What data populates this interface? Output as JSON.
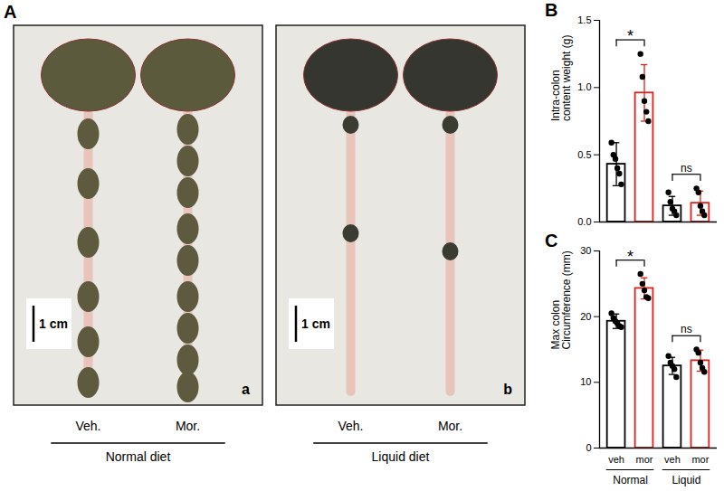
{
  "photo_panel": {
    "label": "A",
    "photos": [
      {
        "label": "a",
        "scale_bar": "1 cm",
        "columns": [
          "Veh.",
          "Mor."
        ],
        "condition": "Normal diet"
      },
      {
        "label": "b",
        "scale_bar": "1 cm",
        "columns": [
          "Veh.",
          "Mor."
        ],
        "condition": "Liquid diet"
      }
    ]
  },
  "chart_data": [
    {
      "panel": "B",
      "type": "bar",
      "y_label": "Intra-colon\ncontent weight (g)",
      "categories": [
        "veh",
        "mor",
        "veh",
        "mor"
      ],
      "groups": [
        "Normal",
        "Normal",
        "Liquid",
        "Liquid"
      ],
      "values": [
        0.43,
        0.96,
        0.12,
        0.14
      ],
      "errors": [
        0.16,
        0.21,
        0.07,
        0.09
      ],
      "points": [
        [
          0.59,
          0.5,
          0.47,
          0.4,
          0.36,
          0.28
        ],
        [
          1.25,
          1.08,
          0.9,
          0.82,
          0.75
        ],
        [
          0.22,
          0.15,
          0.1,
          0.08,
          0.05
        ],
        [
          0.25,
          0.22,
          0.12,
          0.08,
          0.05
        ]
      ],
      "colors": [
        "#000000",
        "#e0201b",
        "#000000",
        "#e0201b"
      ],
      "ylim": [
        0,
        1.5
      ],
      "yticks": [
        {
          "value": 0,
          "label": "0.0"
        },
        0.5,
        {
          "value": 1,
          "label": "1.0"
        },
        1.5
      ],
      "tick_labels": "y",
      "annotations": [
        {
          "group": "Normal",
          "text": "*"
        },
        {
          "group": "Liquid",
          "text": "ns"
        }
      ]
    },
    {
      "panel": "C",
      "type": "bar",
      "y_label": "Max colon\nCircumference (mm)",
      "categories": [
        "veh",
        "mor",
        "veh",
        "mor"
      ],
      "groups": [
        "Normal",
        "Normal",
        "Liquid",
        "Liquid"
      ],
      "values": [
        19.3,
        24.3,
        12.5,
        13.3
      ],
      "errors": [
        1.1,
        1.6,
        1.3,
        1.6
      ],
      "points": [
        [
          20.5,
          19.8,
          19.3,
          19.0,
          18.6,
          18.4
        ],
        [
          26.5,
          25.0,
          24.0,
          23.0,
          22.8
        ],
        [
          14.0,
          13.0,
          12.5,
          12.0,
          10.8
        ],
        [
          15.0,
          14.5,
          13.0,
          12.2,
          11.6
        ]
      ],
      "colors": [
        "#000000",
        "#e0201b",
        "#000000",
        "#e0201b"
      ],
      "ylim": [
        0,
        30
      ],
      "yticks": [
        0,
        10,
        20,
        30
      ],
      "annotations": [
        {
          "group": "Normal",
          "text": "*"
        },
        {
          "group": "Liquid",
          "text": "ns"
        }
      ]
    }
  ]
}
